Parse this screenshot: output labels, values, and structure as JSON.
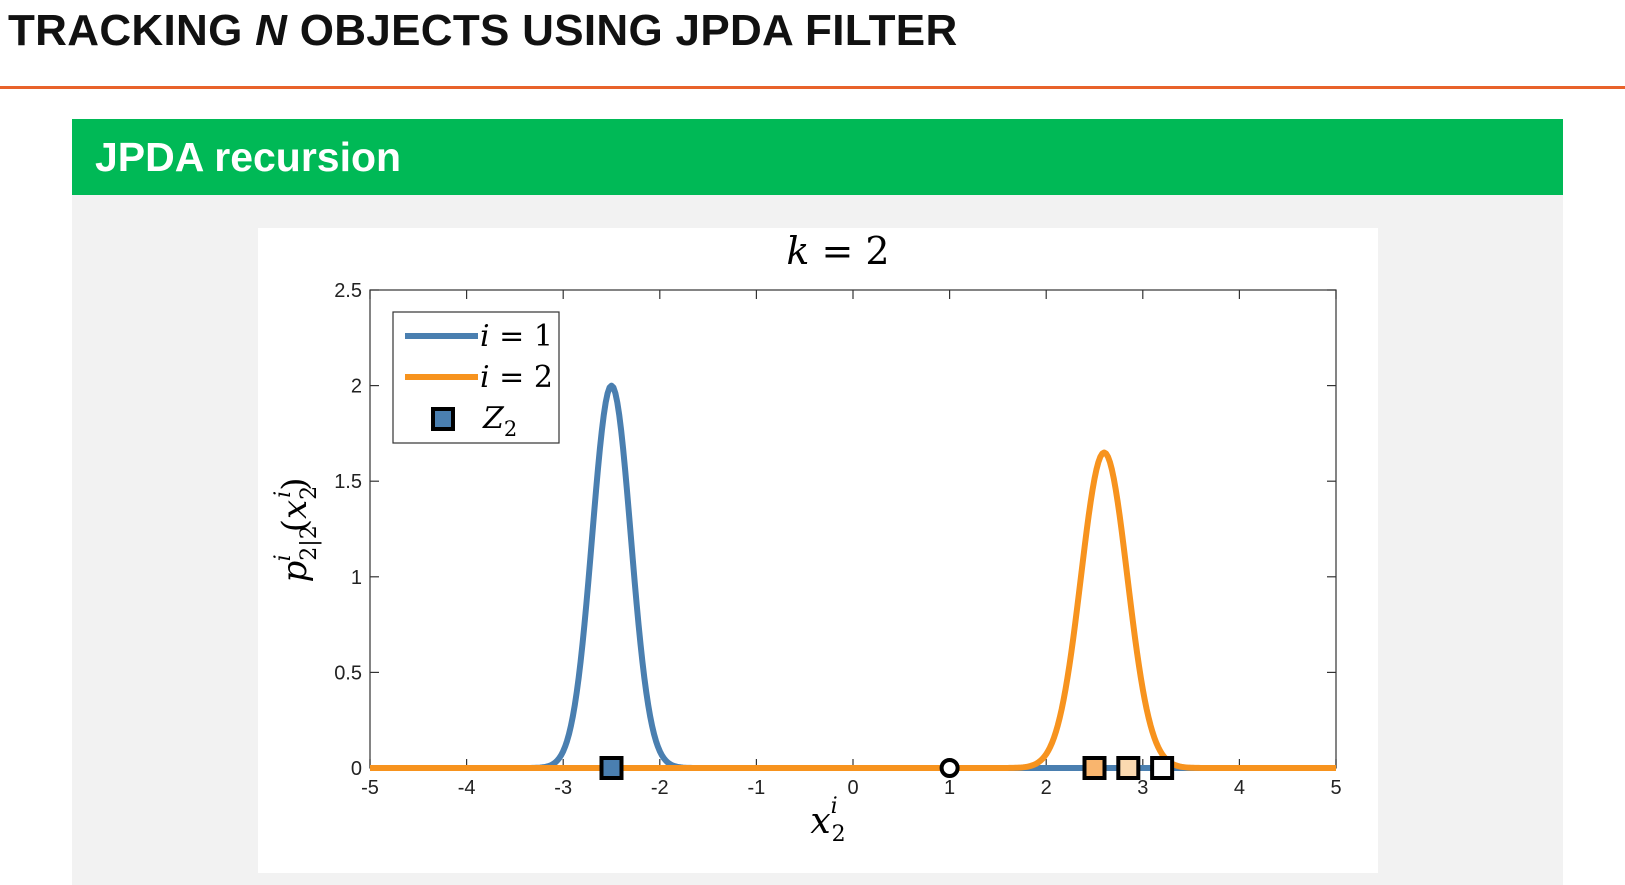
{
  "slide": {
    "title_pre": "TRACKING ",
    "title_em": "N",
    "title_post": " OBJECTS USING JPDA FILTER",
    "rule_color": "#e8622a"
  },
  "block": {
    "title": "JPDA recursion",
    "header_color": "#00b956"
  },
  "chart_data": {
    "type": "line",
    "title": "k = 2",
    "xlabel": "x_2^i",
    "ylabel": "p^i_{2|2}(x^i_2)",
    "xlim": [
      -5,
      5
    ],
    "ylim": [
      0,
      2.5
    ],
    "x_ticks": [
      "-5",
      "-4",
      "-3",
      "-2",
      "-1",
      "0",
      "1",
      "2",
      "3",
      "4",
      "5"
    ],
    "y_ticks": [
      "0",
      "0.5",
      "1",
      "1.5",
      "2",
      "2.5"
    ],
    "grid": false,
    "legend_position": "top-left",
    "series": [
      {
        "name": "i = 1",
        "color": "#4a7fb0",
        "mean": -2.5,
        "peak": 2.0,
        "std": 0.2
      },
      {
        "name": "i = 2",
        "color": "#f7931e",
        "mean": 2.6,
        "peak": 1.65,
        "std": 0.24
      }
    ],
    "measurements": {
      "name": "Z_2",
      "points": [
        {
          "x": -2.5,
          "y": 0,
          "marker": "square",
          "fill": "#4a7fb0"
        },
        {
          "x": 2.5,
          "y": 0,
          "marker": "square",
          "fill": "#f9b56e"
        },
        {
          "x": 2.85,
          "y": 0,
          "marker": "square",
          "fill": "#fbd9b0"
        },
        {
          "x": 3.2,
          "y": 0,
          "marker": "square",
          "fill": "#ffffff"
        },
        {
          "x": 1.0,
          "y": 0,
          "marker": "circle",
          "fill": "#ffffff"
        }
      ]
    }
  }
}
